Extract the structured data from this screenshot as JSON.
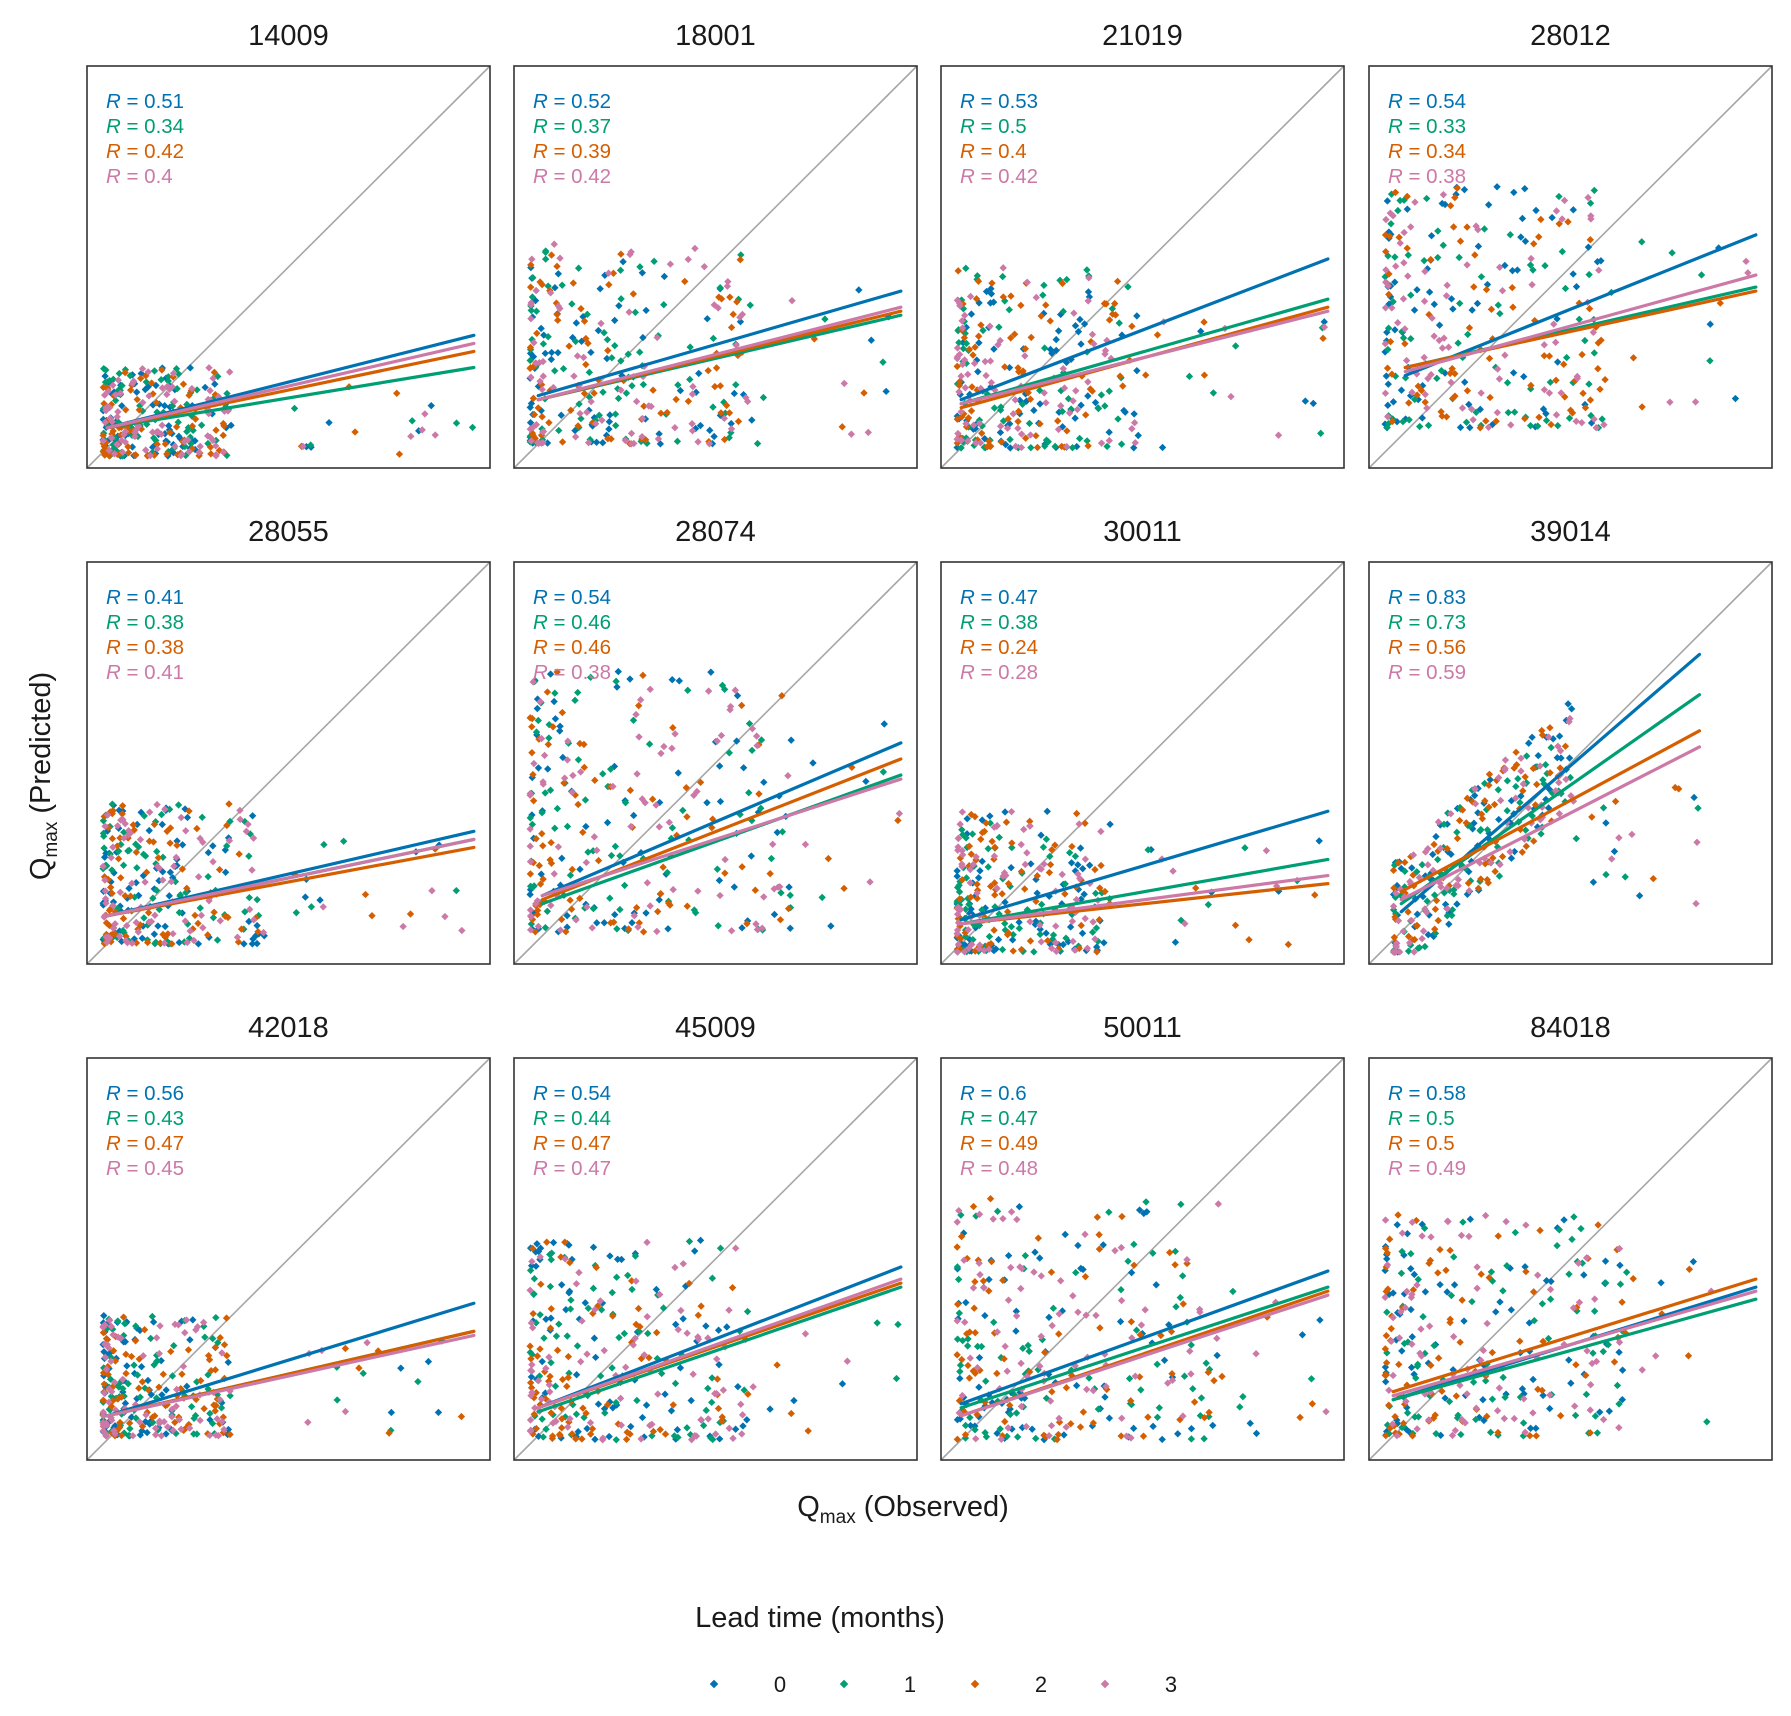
{
  "chart_data": {
    "type": "scatter",
    "description_note": "12 faceted scatter plots of predicted vs observed Qmax with per-lead-time regression lines and 1:1 reference line",
    "xlabel": {
      "main": "Q",
      "sub": "max",
      "rest": "(Observed)"
    },
    "ylabel": {
      "main": "Q",
      "sub": "max",
      "rest": "(Predicted)"
    },
    "legend": {
      "title": "Lead time (months)",
      "position": "bottom",
      "entries": [
        {
          "label": "0",
          "color": "#0072B2"
        },
        {
          "label": "1",
          "color": "#009E73"
        },
        {
          "label": "2",
          "color": "#D55E00"
        },
        {
          "label": "3",
          "color": "#CC79A7"
        }
      ]
    },
    "reference_line": {
      "type": "1:1",
      "color": "#a6a6a6"
    },
    "r_prefix": "R",
    "panels": [
      {
        "title": "14009",
        "r": [
          "0.51",
          "0.34",
          "0.42",
          "0.4"
        ],
        "x_max_obs": 0.96,
        "cluster": {
          "xs": 0.32,
          "ys": 0.22,
          "yb": 0.03
        },
        "lines": [
          [
            0.05,
            0.1,
            0.96,
            0.33
          ],
          [
            0.05,
            0.1,
            0.96,
            0.25
          ],
          [
            0.05,
            0.1,
            0.96,
            0.29
          ],
          [
            0.05,
            0.1,
            0.96,
            0.31
          ]
        ]
      },
      {
        "title": "18001",
        "r": [
          "0.52",
          "0.37",
          "0.39",
          "0.42"
        ],
        "x_max_obs": 0.96,
        "cluster": {
          "xs": 0.55,
          "ys": 0.5,
          "yb": 0.06
        },
        "lines": [
          [
            0.06,
            0.18,
            0.96,
            0.44
          ],
          [
            0.06,
            0.17,
            0.96,
            0.38
          ],
          [
            0.06,
            0.17,
            0.96,
            0.39
          ],
          [
            0.06,
            0.17,
            0.96,
            0.4
          ]
        ]
      },
      {
        "title": "21019",
        "r": [
          "0.53",
          "0.5",
          "0.4",
          "0.42"
        ],
        "x_max_obs": 0.96,
        "cluster": {
          "xs": 0.45,
          "ys": 0.45,
          "yb": 0.05
        },
        "lines": [
          [
            0.05,
            0.17,
            0.96,
            0.52
          ],
          [
            0.05,
            0.16,
            0.96,
            0.42
          ],
          [
            0.05,
            0.15,
            0.96,
            0.4
          ],
          [
            0.05,
            0.16,
            0.96,
            0.39
          ]
        ]
      },
      {
        "title": "28012",
        "r": [
          "0.54",
          "0.33",
          "0.34",
          "0.38"
        ],
        "x_max_obs": 0.96,
        "cluster": {
          "xs": 0.55,
          "ys": 0.6,
          "yb": 0.1
        },
        "lines": [
          [
            0.09,
            0.23,
            0.96,
            0.58
          ],
          [
            0.09,
            0.25,
            0.96,
            0.45
          ],
          [
            0.09,
            0.25,
            0.96,
            0.44
          ],
          [
            0.09,
            0.24,
            0.96,
            0.48
          ]
        ]
      },
      {
        "title": "28055",
        "r": [
          "0.41",
          "0.38",
          "0.38",
          "0.41"
        ],
        "x_max_obs": 0.96,
        "cluster": {
          "xs": 0.4,
          "ys": 0.35,
          "yb": 0.05
        },
        "lines": [
          [
            0.05,
            0.12,
            0.96,
            0.33
          ],
          [
            0.05,
            0.12,
            0.96,
            0.31
          ],
          [
            0.05,
            0.12,
            0.96,
            0.29
          ],
          [
            0.05,
            0.12,
            0.96,
            0.31
          ]
        ]
      },
      {
        "title": "28074",
        "r": [
          "0.54",
          "0.46",
          "0.46",
          "0.38"
        ],
        "x_max_obs": 0.96,
        "cluster": {
          "xs": 0.65,
          "ys": 0.65,
          "yb": 0.08
        },
        "lines": [
          [
            0.07,
            0.17,
            0.96,
            0.55
          ],
          [
            0.07,
            0.15,
            0.96,
            0.47
          ],
          [
            0.07,
            0.16,
            0.96,
            0.51
          ],
          [
            0.07,
            0.17,
            0.96,
            0.46
          ]
        ]
      },
      {
        "title": "30011",
        "r": [
          "0.47",
          "0.38",
          "0.24",
          "0.28"
        ],
        "x_max_obs": 0.96,
        "cluster": {
          "xs": 0.38,
          "ys": 0.35,
          "yb": 0.03
        },
        "lines": [
          [
            0.05,
            0.11,
            0.96,
            0.38
          ],
          [
            0.05,
            0.1,
            0.96,
            0.26
          ],
          [
            0.05,
            0.1,
            0.96,
            0.2
          ],
          [
            0.05,
            0.1,
            0.96,
            0.22
          ]
        ]
      },
      {
        "title": "39014",
        "r": [
          "0.83",
          "0.73",
          "0.56",
          "0.59"
        ],
        "x_max_obs": 0.82,
        "cluster": {
          "xs": 0.45,
          "ys": 0.5,
          "yb": 0.12,
          "corr": true
        },
        "lines": [
          [
            0.08,
            0.13,
            0.82,
            0.77
          ],
          [
            0.08,
            0.15,
            0.82,
            0.67
          ],
          [
            0.08,
            0.18,
            0.82,
            0.58
          ],
          [
            0.08,
            0.16,
            0.82,
            0.54
          ]
        ]
      },
      {
        "title": "42018",
        "r": [
          "0.56",
          "0.43",
          "0.47",
          "0.45"
        ],
        "x_max_obs": 0.96,
        "cluster": {
          "xs": 0.32,
          "ys": 0.3,
          "yb": 0.06
        },
        "lines": [
          [
            0.05,
            0.11,
            0.96,
            0.39
          ],
          [
            0.05,
            0.11,
            0.96,
            0.32
          ],
          [
            0.05,
            0.11,
            0.96,
            0.32
          ],
          [
            0.05,
            0.11,
            0.96,
            0.31
          ]
        ]
      },
      {
        "title": "45009",
        "r": [
          "0.54",
          "0.44",
          "0.47",
          "0.47"
        ],
        "x_max_obs": 0.96,
        "cluster": {
          "xs": 0.55,
          "ys": 0.5,
          "yb": 0.05
        },
        "lines": [
          [
            0.06,
            0.13,
            0.96,
            0.48
          ],
          [
            0.06,
            0.12,
            0.96,
            0.43
          ],
          [
            0.06,
            0.13,
            0.96,
            0.44
          ],
          [
            0.06,
            0.13,
            0.96,
            0.45
          ]
        ]
      },
      {
        "title": "50011",
        "r": [
          "0.6",
          "0.47",
          "0.49",
          "0.48"
        ],
        "x_max_obs": 0.96,
        "cluster": {
          "xs": 0.65,
          "ys": 0.6,
          "yb": 0.05
        },
        "lines": [
          [
            0.05,
            0.14,
            0.96,
            0.47
          ],
          [
            0.05,
            0.13,
            0.96,
            0.43
          ],
          [
            0.05,
            0.11,
            0.96,
            0.42
          ],
          [
            0.05,
            0.11,
            0.96,
            0.41
          ]
        ]
      },
      {
        "title": "84018",
        "r": [
          "0.58",
          "0.5",
          "0.5",
          "0.49"
        ],
        "x_max_obs": 0.96,
        "cluster": {
          "xs": 0.6,
          "ys": 0.55,
          "yb": 0.06
        },
        "lines": [
          [
            0.06,
            0.15,
            0.96,
            0.43
          ],
          [
            0.06,
            0.15,
            0.96,
            0.4
          ],
          [
            0.06,
            0.17,
            0.96,
            0.45
          ],
          [
            0.06,
            0.16,
            0.96,
            0.42
          ]
        ]
      }
    ]
  }
}
